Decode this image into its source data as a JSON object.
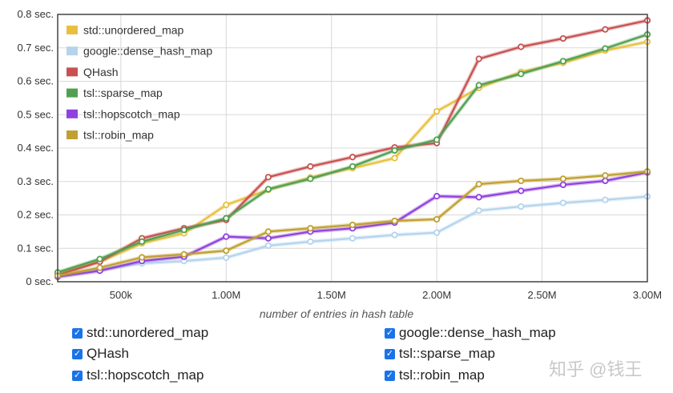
{
  "chart_data": {
    "type": "line",
    "xlabel": "number of entries in hash table",
    "ylabel": "",
    "x": [
      200000,
      400000,
      600000,
      800000,
      1000000,
      1200000,
      1400000,
      1600000,
      1800000,
      2000000,
      2200000,
      2400000,
      2600000,
      2800000,
      3000000
    ],
    "xlim": [
      200000,
      3000000
    ],
    "ylim": [
      0,
      0.8
    ],
    "xticks": [
      {
        "v": 500000,
        "label": "500k"
      },
      {
        "v": 1000000,
        "label": "1.00M"
      },
      {
        "v": 1500000,
        "label": "1.50M"
      },
      {
        "v": 2000000,
        "label": "2.00M"
      },
      {
        "v": 2500000,
        "label": "2.50M"
      },
      {
        "v": 3000000,
        "label": "3.00M"
      }
    ],
    "yticks": [
      {
        "v": 0,
        "label": "0 sec."
      },
      {
        "v": 0.1,
        "label": "0.1 sec."
      },
      {
        "v": 0.2,
        "label": "0.2 sec."
      },
      {
        "v": 0.3,
        "label": "0.3 sec."
      },
      {
        "v": 0.4,
        "label": "0.4 sec."
      },
      {
        "v": 0.5,
        "label": "0.5 sec."
      },
      {
        "v": 0.6,
        "label": "0.6 sec."
      },
      {
        "v": 0.7,
        "label": "0.7 sec."
      },
      {
        "v": 0.8,
        "label": "0.8 sec."
      }
    ],
    "grid": true,
    "legend": "top-left",
    "series": [
      {
        "name": "std::unordered_map",
        "color": "#e8c040",
        "values": [
          0.025,
          0.06,
          0.115,
          0.145,
          0.23,
          0.275,
          0.312,
          0.34,
          0.37,
          0.51,
          0.58,
          0.628,
          0.655,
          0.692,
          0.718
        ]
      },
      {
        "name": "google::dense_hash_map",
        "color": "#b4d4ee",
        "values": [
          0.015,
          0.035,
          0.055,
          0.062,
          0.072,
          0.108,
          0.12,
          0.13,
          0.14,
          0.147,
          0.213,
          0.225,
          0.236,
          0.245,
          0.255
        ]
      },
      {
        "name": "QHash",
        "color": "#c85050",
        "values": [
          0.02,
          0.06,
          0.13,
          0.16,
          0.185,
          0.313,
          0.345,
          0.373,
          0.402,
          0.415,
          0.667,
          0.703,
          0.728,
          0.755,
          0.782
        ]
      },
      {
        "name": "tsl::sparse_map",
        "color": "#50a050",
        "values": [
          0.028,
          0.068,
          0.12,
          0.155,
          0.19,
          0.277,
          0.308,
          0.345,
          0.393,
          0.425,
          0.588,
          0.622,
          0.66,
          0.698,
          0.74
        ]
      },
      {
        "name": "tsl::hopscotch_map",
        "color": "#9040e0",
        "values": [
          0.015,
          0.033,
          0.062,
          0.075,
          0.135,
          0.13,
          0.15,
          0.16,
          0.177,
          0.256,
          0.253,
          0.272,
          0.29,
          0.302,
          0.327
        ]
      },
      {
        "name": "tsl::robin_map",
        "color": "#c0a030",
        "values": [
          0.018,
          0.042,
          0.073,
          0.082,
          0.093,
          0.15,
          0.16,
          0.17,
          0.182,
          0.187,
          0.292,
          0.302,
          0.308,
          0.318,
          0.33
        ]
      }
    ]
  },
  "controls": [
    {
      "label": "std::unordered_map",
      "checked": true
    },
    {
      "label": "google::dense_hash_map",
      "checked": true
    },
    {
      "label": "QHash",
      "checked": true
    },
    {
      "label": "tsl::sparse_map",
      "checked": true
    },
    {
      "label": "tsl::hopscotch_map",
      "checked": true
    },
    {
      "label": "tsl::robin_map",
      "checked": true
    }
  ],
  "checkbox_glyph": "✓",
  "watermark": "知乎 @钱王"
}
